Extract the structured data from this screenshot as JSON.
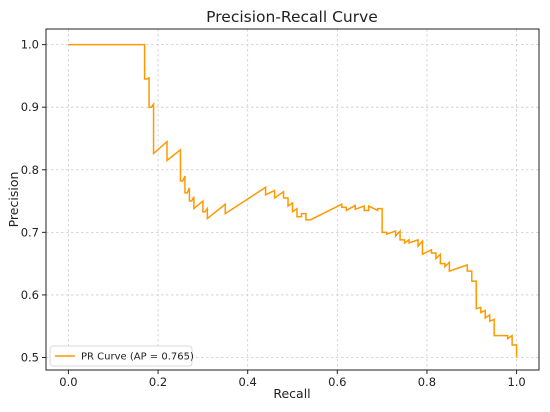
{
  "chart_data": {
    "type": "line",
    "title": "Precision-Recall Curve",
    "xlabel": "Recall",
    "ylabel": "Precision",
    "xlim": [
      -0.05,
      1.05
    ],
    "ylim": [
      0.48,
      1.025
    ],
    "xticks": [
      0.0,
      0.2,
      0.4,
      0.6,
      0.8,
      1.0
    ],
    "xtick_labels": [
      "0.0",
      "0.2",
      "0.4",
      "0.6",
      "0.8",
      "1.0"
    ],
    "yticks": [
      0.5,
      0.6,
      0.7,
      0.8,
      0.9,
      1.0
    ],
    "ytick_labels": [
      "0.5",
      "0.6",
      "0.7",
      "0.8",
      "0.9",
      "1.0"
    ],
    "grid": true,
    "legend_position": "lower-left",
    "series": [
      {
        "name": "PR Curve (AP = 0.765)",
        "color": "#ff9900",
        "x": [
          0.0,
          0.17,
          0.17,
          0.175,
          0.18,
          0.18,
          0.185,
          0.19,
          0.19,
          0.22,
          0.22,
          0.25,
          0.25,
          0.255,
          0.26,
          0.26,
          0.265,
          0.27,
          0.27,
          0.275,
          0.28,
          0.28,
          0.3,
          0.3,
          0.305,
          0.31,
          0.31,
          0.35,
          0.35,
          0.44,
          0.44,
          0.46,
          0.46,
          0.48,
          0.48,
          0.49,
          0.49,
          0.5,
          0.5,
          0.51,
          0.51,
          0.52,
          0.52,
          0.53,
          0.53,
          0.54,
          0.54,
          0.61,
          0.61,
          0.62,
          0.62,
          0.64,
          0.64,
          0.66,
          0.66,
          0.67,
          0.67,
          0.69,
          0.69,
          0.7,
          0.7,
          0.71,
          0.71,
          0.73,
          0.73,
          0.74,
          0.74,
          0.75,
          0.75,
          0.76,
          0.76,
          0.78,
          0.78,
          0.79,
          0.79,
          0.81,
          0.81,
          0.82,
          0.82,
          0.83,
          0.83,
          0.84,
          0.84,
          0.85,
          0.85,
          0.89,
          0.89,
          0.9,
          0.9,
          0.91,
          0.91,
          0.92,
          0.92,
          0.93,
          0.93,
          0.94,
          0.94,
          0.95,
          0.95,
          0.98,
          0.98,
          0.99,
          0.99,
          1.0,
          1.0
        ],
        "y": [
          1.0,
          1.0,
          0.945,
          0.945,
          0.947,
          0.9,
          0.9,
          0.905,
          0.826,
          0.845,
          0.815,
          0.832,
          0.782,
          0.782,
          0.79,
          0.763,
          0.763,
          0.771,
          0.75,
          0.75,
          0.757,
          0.738,
          0.75,
          0.733,
          0.733,
          0.738,
          0.722,
          0.745,
          0.73,
          0.772,
          0.76,
          0.767,
          0.755,
          0.765,
          0.755,
          0.755,
          0.742,
          0.747,
          0.733,
          0.738,
          0.725,
          0.725,
          0.73,
          0.73,
          0.72,
          0.72,
          0.72,
          0.745,
          0.74,
          0.74,
          0.735,
          0.743,
          0.737,
          0.742,
          0.735,
          0.735,
          0.742,
          0.735,
          0.738,
          0.738,
          0.7,
          0.7,
          0.697,
          0.702,
          0.694,
          0.702,
          0.688,
          0.688,
          0.683,
          0.688,
          0.683,
          0.688,
          0.678,
          0.686,
          0.665,
          0.672,
          0.667,
          0.667,
          0.658,
          0.665,
          0.65,
          0.65,
          0.645,
          0.652,
          0.638,
          0.648,
          0.638,
          0.638,
          0.622,
          0.622,
          0.578,
          0.58,
          0.572,
          0.575,
          0.563,
          0.568,
          0.558,
          0.561,
          0.535,
          0.535,
          0.53,
          0.535,
          0.52,
          0.52,
          0.5
        ]
      }
    ]
  }
}
